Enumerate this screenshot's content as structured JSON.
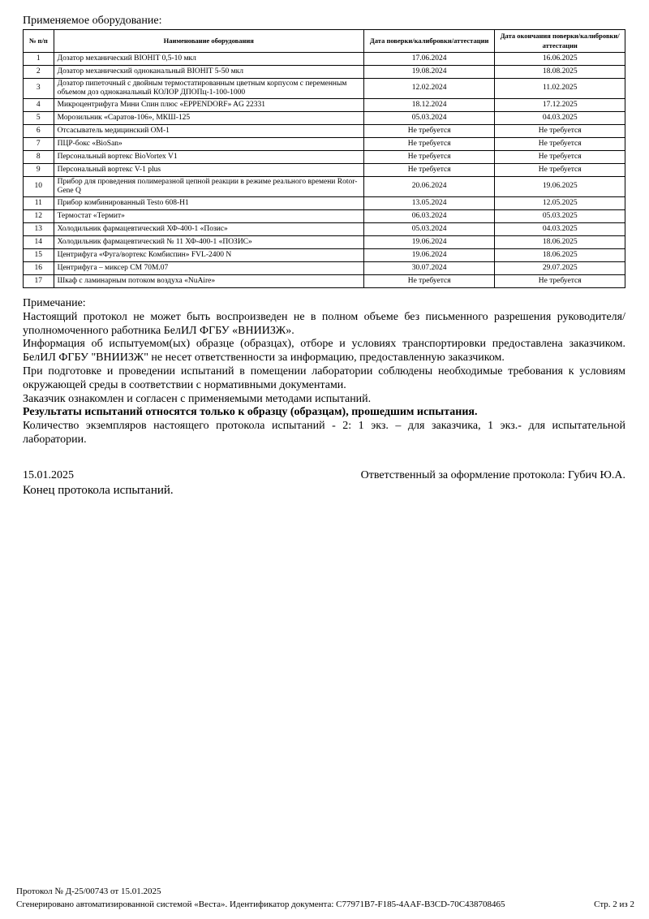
{
  "title": "Применяемое оборудование:",
  "table": {
    "headers": [
      "№ п/п",
      "Наименование оборудования",
      "Дата поверки/калибровки/аттестации",
      "Дата окончания поверки/калибровки/аттестации"
    ],
    "rows": [
      [
        "1",
        "Дозатор механический BIOHIT 0,5-10 мкл",
        "17.06.2024",
        "16.06.2025"
      ],
      [
        "2",
        "Дозатор механический одноканальный BIOHIT 5-50 мкл",
        "19.08.2024",
        "18.08.2025"
      ],
      [
        "3",
        "Дозатор пипеточный с двойным термостатированным цветным корпусом с переменным объемом доз одноканальный КОЛОР ДПОПц-1-100-1000",
        "12.02.2024",
        "11.02.2025"
      ],
      [
        "4",
        "Микроцентрифуга Мини Спин плюс «EPPENDORF» AG 22331",
        "18.12.2024",
        "17.12.2025"
      ],
      [
        "5",
        "Морозильник «Саратов-106», МКШ-125",
        "05.03.2024",
        "04.03.2025"
      ],
      [
        "6",
        "Отсасыватель медицинский ОМ-1",
        "Не требуется",
        "Не требуется"
      ],
      [
        "7",
        "ПЦР-бокс «BioSan»",
        "Не требуется",
        "Не требуется"
      ],
      [
        "8",
        "Персональный вортекс BioVortex V1",
        "Не требуется",
        "Не требуется"
      ],
      [
        "9",
        "Персональный вортекс V-1 plus",
        "Не требуется",
        "Не требуется"
      ],
      [
        "10",
        "Прибор для проведения полимеразной цепной реакции в режиме реального времени Rotor-Gene Q",
        "20.06.2024",
        "19.06.2025"
      ],
      [
        "11",
        "Прибор комбинированный Testo 608-H1",
        "13.05.2024",
        "12.05.2025"
      ],
      [
        "12",
        "Термостат «Термит»",
        "06.03.2024",
        "05.03.2025"
      ],
      [
        "13",
        "Холодильник фармацевтический ХФ-400-1 «Позис»",
        "05.03.2024",
        "04.03.2025"
      ],
      [
        "14",
        "Холодильник фармацевтический № 11 ХФ-400-1 «ПОЗИС»",
        "19.06.2024",
        "18.06.2025"
      ],
      [
        "15",
        "Центрифуга «Фуга/вортекс Комбиспин» FVL-2400 N",
        "19.06.2024",
        "18.06.2025"
      ],
      [
        "16",
        "Центрифуга – миксер CM 70M.07",
        "30.07.2024",
        "29.07.2025"
      ],
      [
        "17",
        "Шкаф с ламинарным потоком воздуха «NuAire»",
        "Не требуется",
        "Не требуется"
      ]
    ]
  },
  "notes": [
    "Примечание:",
    "Настоящий протокол не может быть воспроизведен не в полном объеме без письменного разрешения руководителя/уполномоченного работника БелИЛ ФГБУ «ВНИИЗЖ».",
    "Информация об испытуемом(ых) образце (образцах), отборе и условиях транспортировки предоставлена заказчиком. БелИЛ ФГБУ \"ВНИИЗЖ\" не несет ответственности за информацию, предоставленную заказчиком.",
    "При подготовке и проведении испытаний в помещении лаборатории соблюдены необходимые требования к условиям окружающей среды в соответствии с нормативными документами.",
    "Заказчик ознакомлен и согласен с применяемыми методами испытаний.",
    "Результаты испытаний относятся только к образцу (образцам), прошедшим испытания.",
    "Количество экземпляров настоящего протокола испытаний - 2: 1 экз. – для заказчика, 1 экз.- для испытательной лаборатории."
  ],
  "signature": {
    "date": "15.01.2025",
    "responsible": "Ответственный за оформление протокола: Губич Ю.А.",
    "end": "Конец протокола испытаний."
  },
  "footer": {
    "protocol": "Протокол № Д-25/00743 от 15.01.2025",
    "generated": "Сгенерировано автоматизированной системой «Веста». Идентификатор документа: C77971B7-F185-4AAF-B3CD-70C438708465",
    "page": "Стр. 2 из 2"
  }
}
